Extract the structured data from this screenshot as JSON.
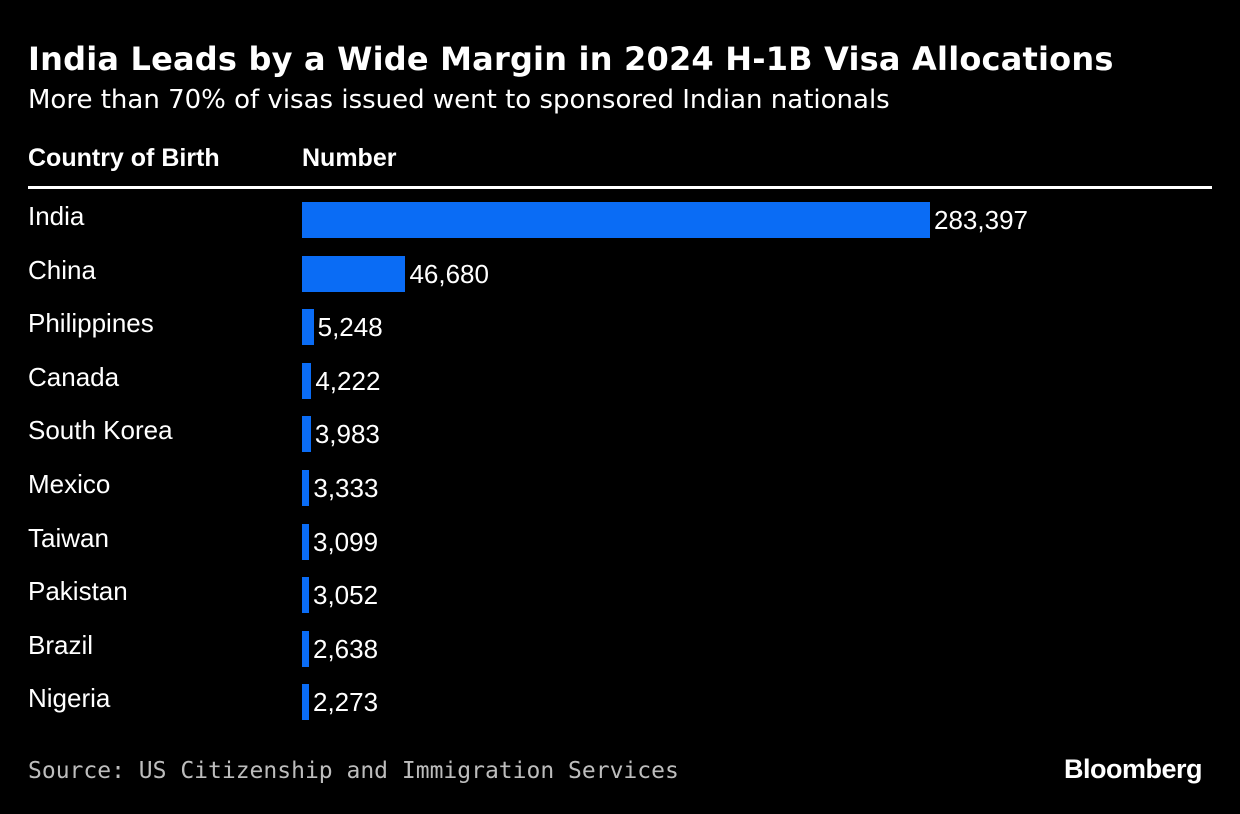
{
  "chart_data": {
    "type": "bar",
    "orientation": "horizontal",
    "title": "India Leads by a Wide Margin in 2024 H-1B Visa Allocations",
    "subtitle": "More than 70% of visas issued went to sponsored Indian nationals",
    "column_headers": [
      "Country of Birth",
      "Number"
    ],
    "categories": [
      "India",
      "China",
      "Philippines",
      "Canada",
      "South Korea",
      "Mexico",
      "Taiwan",
      "Pakistan",
      "Brazil",
      "Nigeria"
    ],
    "values": [
      283397,
      46680,
      5248,
      4222,
      3983,
      3333,
      3099,
      3052,
      2638,
      2273
    ],
    "value_labels": [
      "283,397",
      "46,680",
      "5,248",
      "4,222",
      "3,983",
      "3,333",
      "3,099",
      "3,052",
      "2,638",
      "2,273"
    ],
    "bar_color": "#0a6cf5",
    "source": "Source: US Citizenship and Immigration Services",
    "logo": "Bloomberg"
  }
}
